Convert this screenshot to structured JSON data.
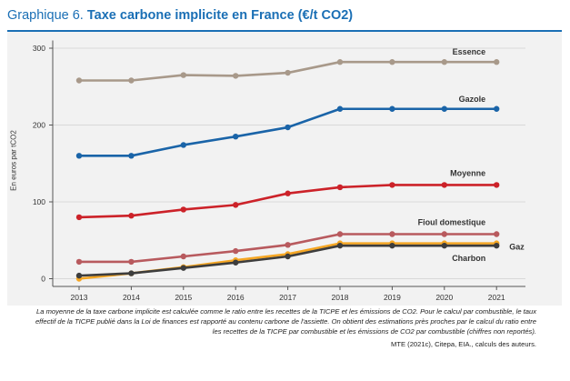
{
  "figure": {
    "prefix": "Graphique 6.",
    "title": "Taxe carbone implicite en France (€/t CO2)",
    "note": "La moyenne de la taxe carbone implicite est calculée comme le ratio entre les recettes de la TICPE et les émissions de CO2. Pour le calcul par combustible, le taux effectif de la TICPE publié dans la Loi de finances est rapporté au contenu carbone de l'assiette. On obtient des estimations près proches par le calcul du ratio entre les recettes de la TICPE par combustible et les émissions de CO2 par combustible (chiffres non reportés).",
    "source": "MTE (2021c), Citepa, EIA., calculs des auteurs."
  },
  "chart_data": {
    "type": "line",
    "ylabel": "En euros par tCO2",
    "xlabel": "",
    "x": [
      "2013",
      "2014",
      "2015",
      "2016",
      "2017",
      "2018",
      "2019",
      "2020",
      "2021"
    ],
    "yticks": [
      "0",
      "100",
      "200",
      "300"
    ],
    "ylim": [
      -10,
      310
    ],
    "grid": true,
    "series": [
      {
        "name": "Essence",
        "color": "#a8998a",
        "values": [
          258,
          258,
          265,
          264,
          268,
          282,
          282,
          282,
          282
        ]
      },
      {
        "name": "Gazole",
        "color": "#1a64a8",
        "values": [
          160,
          160,
          174,
          185,
          197,
          221,
          221,
          221,
          221
        ]
      },
      {
        "name": "Moyenne",
        "color": "#cc2229",
        "values": [
          80,
          82,
          90,
          96,
          111,
          119,
          122,
          122,
          122
        ]
      },
      {
        "name": "Fioul domestique",
        "color": "#b85a5e",
        "values": [
          22,
          22,
          29,
          36,
          44,
          58,
          58,
          58,
          58
        ]
      },
      {
        "name": "Gaz",
        "color": "#f5a623",
        "values": [
          0,
          7,
          15,
          24,
          32,
          46,
          46,
          46,
          46
        ]
      },
      {
        "name": "Charbon",
        "color": "#3d3d3d",
        "values": [
          4,
          7,
          14,
          21,
          29,
          43,
          43,
          43,
          43
        ]
      }
    ]
  }
}
